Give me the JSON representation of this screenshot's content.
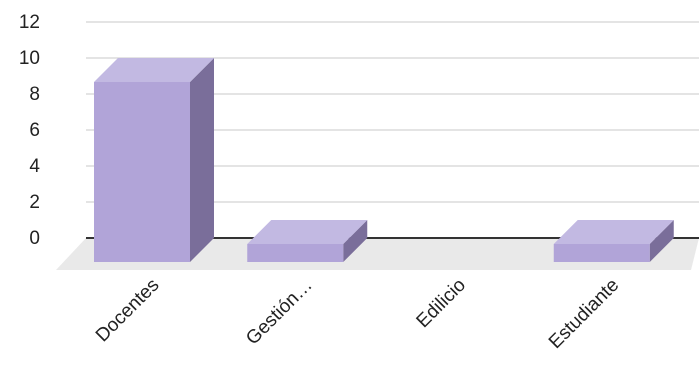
{
  "chart_data": {
    "type": "bar",
    "style": "3d",
    "categories": [
      "Docentes",
      "Gestión…",
      "Edilicio",
      "Estudiante"
    ],
    "values": [
      10,
      1,
      0,
      1
    ],
    "yticks": [
      "0",
      "2",
      "4",
      "6",
      "8",
      "10",
      "12"
    ],
    "ylim": [
      0,
      12
    ],
    "grid": true,
    "legend": "none",
    "colors": {
      "bar_front": "#b1a4d8",
      "bar_top": "#c2b9e2",
      "bar_side": "#7a6e9a",
      "floor": "#e9e9e9",
      "gridline": "#d4d4d4",
      "baseline": "#333333"
    }
  }
}
